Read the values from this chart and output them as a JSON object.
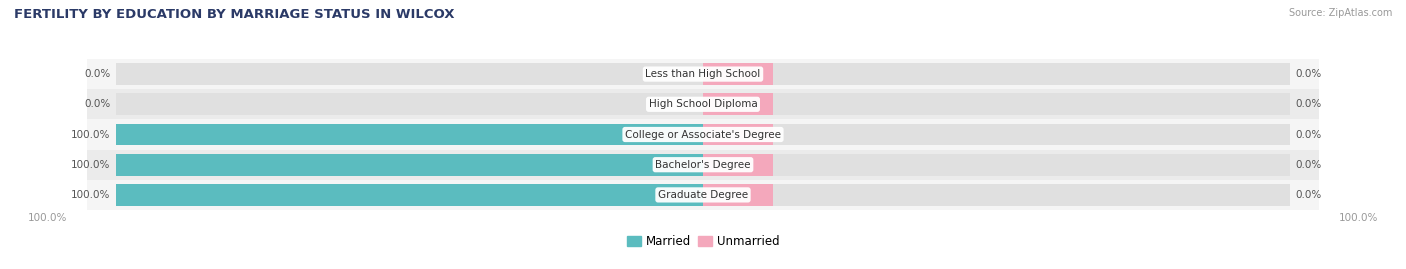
{
  "title": "FERTILITY BY EDUCATION BY MARRIAGE STATUS IN WILCOX",
  "source": "Source: ZipAtlas.com",
  "categories": [
    "Less than High School",
    "High School Diploma",
    "College or Associate's Degree",
    "Bachelor's Degree",
    "Graduate Degree"
  ],
  "married_values": [
    0.0,
    0.0,
    100.0,
    100.0,
    100.0
  ],
  "unmarried_values": [
    0.0,
    0.0,
    0.0,
    0.0,
    0.0
  ],
  "married_color": "#5bbcbf",
  "unmarried_color": "#f4a8bc",
  "bg_color": "#ffffff",
  "row_bg_colors": [
    "#f5f5f5",
    "#ebebeb"
  ],
  "bar_track_color": "#e0e0e0",
  "title_color": "#2b3a67",
  "value_color": "#555555",
  "axis_label_color": "#999999",
  "cat_label_color": "#333333",
  "legend_married": "Married",
  "legend_unmarried": "Unmarried",
  "bar_height": 0.72,
  "bottom_left_label": "100.0%",
  "bottom_right_label": "100.0%"
}
